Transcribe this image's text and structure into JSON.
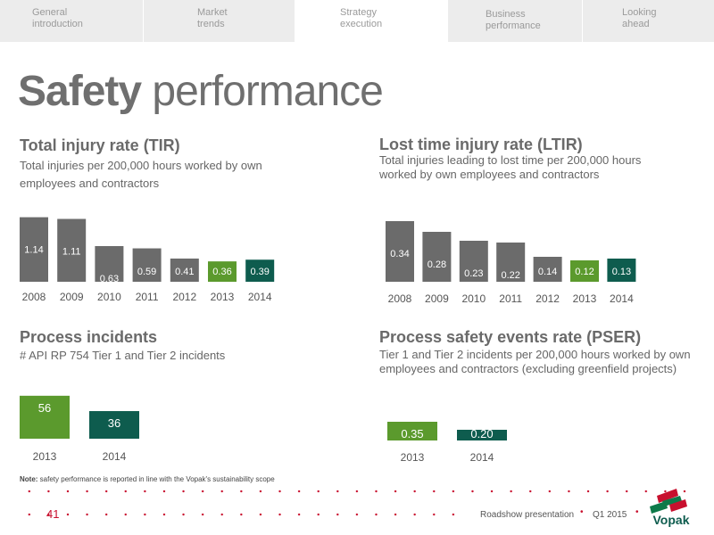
{
  "nav": {
    "tabs": [
      {
        "label": "General\nintroduction"
      },
      {
        "label": "Market\ntrends"
      },
      {
        "label": "Strategy\nexecution",
        "active": true
      },
      {
        "label": "Business\nperformance"
      },
      {
        "label": "Looking\nahead"
      }
    ]
  },
  "page": {
    "title_bold": "Safety",
    "title_rest": " performance"
  },
  "tir": {
    "heading": "Total injury rate (TIR)",
    "subtitle": "Total injuries per 200,000 hours worked by own employees and contractors"
  },
  "ltir": {
    "heading": "Lost time injury rate (LTIR)",
    "subtitle": "Total injuries leading to lost time per 200,000 hours worked by own employees and contractors"
  },
  "pi": {
    "heading": "Process incidents",
    "subtitle": "# API RP 754 Tier 1 and Tier 2 incidents"
  },
  "pser": {
    "heading": "Process safety events rate (PSER)",
    "subtitle": "Tier 1 and Tier 2 incidents per 200,000 hours worked by own employees and contractors (excluding greenfield projects)"
  },
  "colors": {
    "gray": "#6b6b6b",
    "green": "#5b9a2d",
    "teal": "#0e5c4e",
    "red": "#c8102e"
  },
  "chart_data": [
    {
      "id": "tir",
      "type": "bar",
      "categories": [
        "2008",
        "2009",
        "2010",
        "2011",
        "2012",
        "2013",
        "2014"
      ],
      "values": [
        1.14,
        1.11,
        0.63,
        0.59,
        0.41,
        0.36,
        0.39
      ],
      "labels": [
        "1.14",
        "1.11",
        "0.63",
        "0.59",
        "0.41",
        "0.36",
        "0.39"
      ],
      "colors": [
        "gray",
        "gray",
        "gray",
        "gray",
        "gray",
        "green",
        "teal"
      ]
    },
    {
      "id": "ltir",
      "type": "bar",
      "categories": [
        "2008",
        "2009",
        "2010",
        "2011",
        "2012",
        "2013",
        "2014"
      ],
      "values": [
        0.34,
        0.28,
        0.23,
        0.22,
        0.14,
        0.12,
        0.13
      ],
      "labels": [
        "0.34",
        "0.28",
        "0.23",
        "0.22",
        "0.14",
        "0.12",
        "0.13"
      ],
      "colors": [
        "gray",
        "gray",
        "gray",
        "gray",
        "gray",
        "green",
        "teal"
      ]
    },
    {
      "id": "pi",
      "type": "bar",
      "categories": [
        "2013",
        "2014"
      ],
      "values": [
        56,
        36
      ],
      "labels": [
        "56",
        "36"
      ],
      "colors": [
        "green",
        "teal"
      ]
    },
    {
      "id": "pser",
      "type": "bar",
      "categories": [
        "2013",
        "2014"
      ],
      "values": [
        0.35,
        0.2
      ],
      "labels": [
        "0.35",
        "0.20"
      ],
      "colors": [
        "green",
        "teal"
      ]
    }
  ],
  "footer": {
    "note_bold": "Note:",
    "note_text": " safety performance is reported in line with the Vopak's sustainability scope",
    "page_number": "41",
    "presentation": "Roadshow presentation",
    "quarter": "Q1 2015",
    "bullet": "•",
    "logo_text": "Vopak"
  }
}
